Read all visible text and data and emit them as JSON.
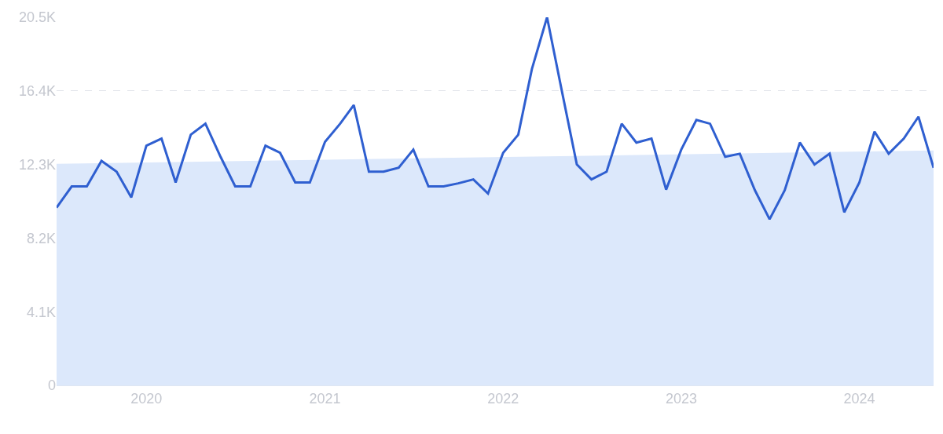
{
  "chart_data": {
    "type": "line",
    "x": [
      "2019-07",
      "2019-08",
      "2019-09",
      "2019-10",
      "2019-11",
      "2019-12",
      "2020-01",
      "2020-02",
      "2020-03",
      "2020-04",
      "2020-05",
      "2020-06",
      "2020-07",
      "2020-08",
      "2020-09",
      "2020-10",
      "2020-11",
      "2020-12",
      "2021-01",
      "2021-02",
      "2021-03",
      "2021-04",
      "2021-05",
      "2021-06",
      "2021-07",
      "2021-08",
      "2021-09",
      "2021-10",
      "2021-11",
      "2021-12",
      "2022-01",
      "2022-02",
      "2022-03",
      "2022-04",
      "2022-05",
      "2022-06",
      "2022-07",
      "2022-08",
      "2022-09",
      "2022-10",
      "2022-11",
      "2022-12",
      "2023-01",
      "2023-02",
      "2023-03",
      "2023-04",
      "2023-05",
      "2023-06",
      "2023-07",
      "2023-08",
      "2023-09",
      "2023-10",
      "2023-11",
      "2023-12",
      "2024-01",
      "2024-02",
      "2024-03",
      "2024-04",
      "2024-05",
      "2024-06"
    ],
    "series": [
      {
        "type": "area",
        "color": "#dce8fb",
        "x": [
          "2019-07",
          "2024-06"
        ],
        "values": [
          12340,
          13080
        ]
      },
      {
        "color": "#2f5fd0",
        "values": [
          9900,
          11080,
          11080,
          12500,
          11900,
          10470,
          13350,
          13740,
          11300,
          13960,
          14570,
          12730,
          11080,
          11080,
          13350,
          12950,
          11300,
          11300,
          13560,
          14570,
          15610,
          11900,
          11900,
          12120,
          13130,
          11080,
          11080,
          11250,
          11470,
          10680,
          12950,
          13960,
          17620,
          20500,
          16440,
          12300,
          11470,
          11900,
          14570,
          13520,
          13740,
          10900,
          13130,
          14780,
          14570,
          12730,
          12900,
          10860,
          9250,
          10860,
          13520,
          12300,
          12900,
          9640,
          11300,
          14130,
          12900,
          13740,
          14960,
          12120
        ]
      }
    ],
    "xlim": [
      "2019-07",
      "2024-06"
    ],
    "xticks": [
      {
        "value": "2020-01",
        "label": "2020"
      },
      {
        "value": "2021-01",
        "label": "2021"
      },
      {
        "value": "2022-01",
        "label": "2022"
      },
      {
        "value": "2023-01",
        "label": "2023"
      },
      {
        "value": "2024-01",
        "label": "2024"
      }
    ],
    "ylim": [
      0,
      20500
    ],
    "yticks": [
      0,
      {
        "value": 4100,
        "label": "4.1K"
      },
      {
        "value": 8200,
        "label": "8.2K"
      },
      {
        "value": 12300,
        "label": "12.3K"
      },
      {
        "value": 16400,
        "label": "16.4K"
      },
      {
        "value": 20500,
        "label": "20.5K"
      }
    ],
    "grid": "y",
    "marker": "none",
    "line_style": "solid"
  }
}
